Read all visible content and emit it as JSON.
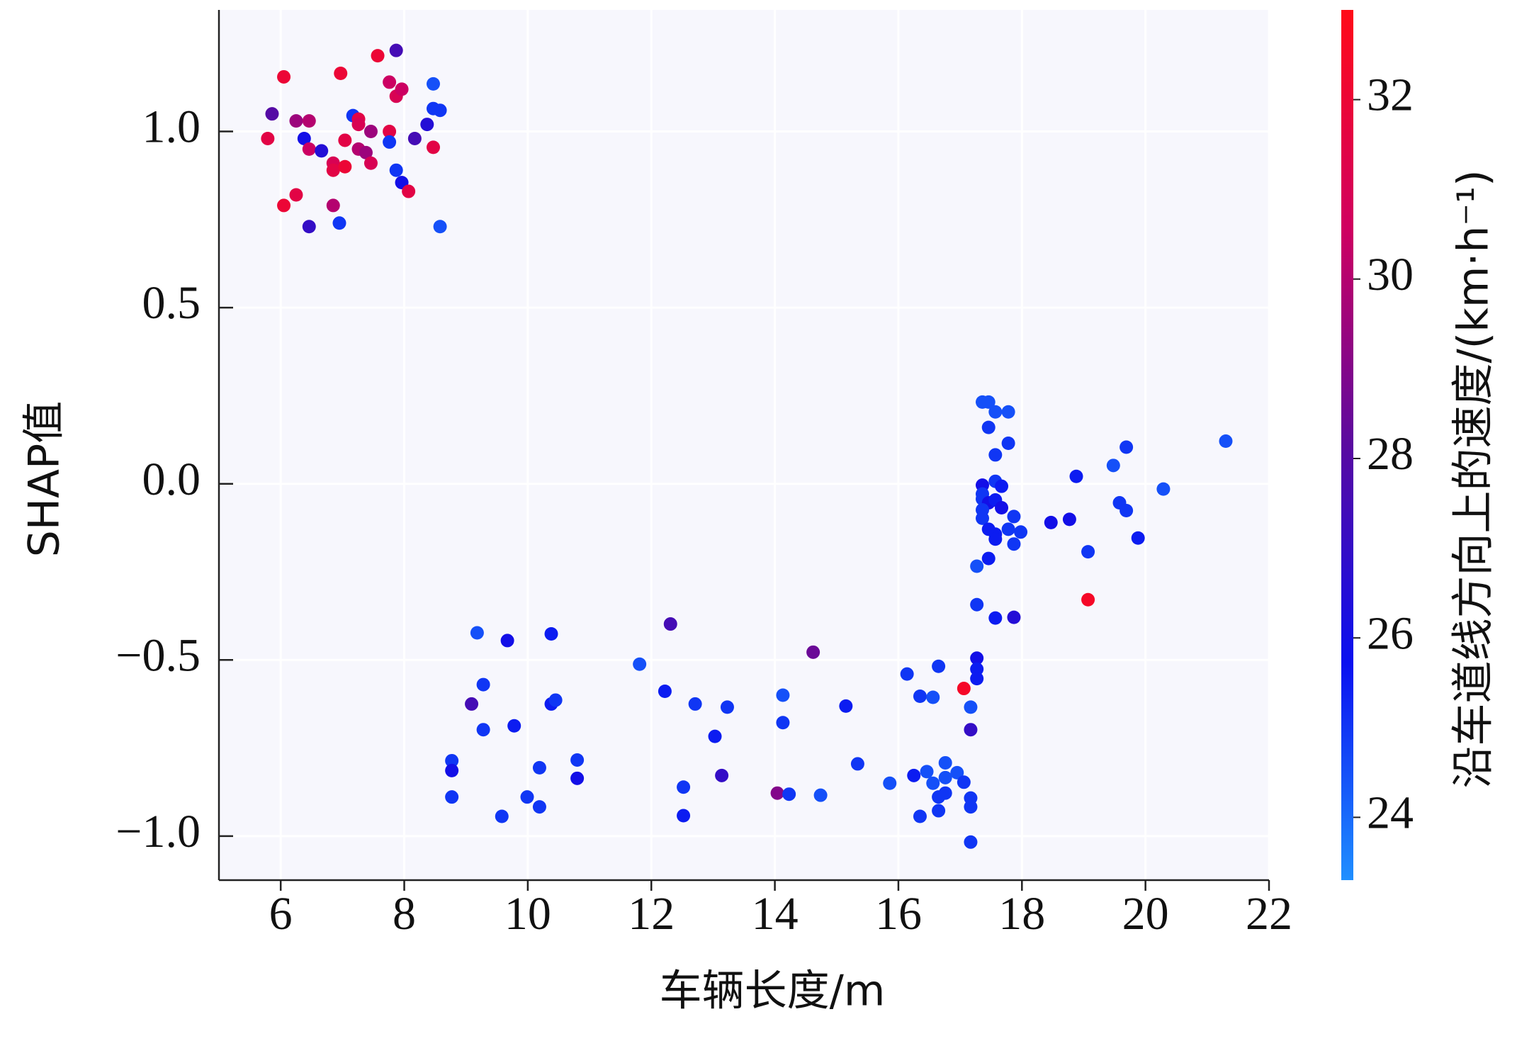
{
  "chart_data": {
    "type": "scatter",
    "x_label": "车辆长度/m",
    "y_label": "SHAP值",
    "colorbar_label": "沿车道线方向上的速度/(km·h⁻¹)",
    "xlim": [
      5.0,
      22.0
    ],
    "xticks": [
      6,
      8,
      10,
      12,
      14,
      16,
      18,
      20,
      22
    ],
    "ylim": [
      -1.125,
      1.345
    ],
    "yticks": [
      {
        "value": -1,
        "label": "−1.0"
      },
      {
        "value": -0.5,
        "label": "−0.5"
      },
      {
        "value": 0,
        "label": "0.0"
      },
      0.5,
      {
        "value": 1,
        "label": "1.0"
      }
    ],
    "clim": [
      23.3,
      33.0
    ],
    "cticks": [
      24,
      26,
      28,
      30,
      32
    ],
    "colormap": [
      "#1f8fff",
      "#0a10f0",
      "#5a0aa0",
      "#d00060",
      "#ff0a18"
    ],
    "grid": true,
    "x": [
      5.79,
      5.86,
      6.05,
      6.05,
      6.25,
      6.25,
      6.38,
      6.46,
      6.46,
      6.46,
      6.66,
      6.85,
      6.85,
      6.85,
      6.95,
      6.97,
      7.04,
      7.04,
      7.17,
      7.26,
      7.26,
      7.26,
      7.38,
      7.46,
      7.46,
      7.57,
      7.76,
      7.76,
      7.76,
      7.87,
      7.87,
      7.87,
      7.96,
      7.96,
      8.07,
      8.17,
      8.37,
      8.47,
      8.47,
      8.47,
      8.58,
      8.58,
      9.18,
      8.77,
      8.77,
      8.77,
      9.09,
      9.28,
      9.28,
      9.67,
      9.78,
      9.58,
      9.99,
      10.19,
      10.19,
      10.38,
      10.38,
      10.45,
      10.8,
      10.8,
      11.81,
      12.31,
      12.22,
      12.52,
      12.52,
      12.71,
      13.03,
      13.14,
      13.23,
      14.04,
      14.13,
      14.13,
      14.23,
      14.62,
      14.74,
      15.15,
      15.34,
      15.86,
      16.14,
      16.25,
      16.35,
      16.35,
      16.46,
      16.56,
      16.56,
      16.65,
      16.65,
      16.65,
      16.76,
      16.76,
      16.76,
      16.95,
      17.06,
      17.06,
      17.17,
      17.17,
      17.17,
      17.17,
      17.17,
      17.27,
      17.27,
      17.27,
      17.27,
      17.27,
      17.36,
      17.46,
      17.57,
      17.78,
      17.46,
      17.78,
      17.57,
      17.36,
      17.36,
      17.57,
      17.67,
      17.36,
      17.46,
      17.57,
      17.67,
      17.36,
      17.36,
      17.46,
      17.57,
      17.57,
      17.78,
      17.87,
      17.87,
      17.98,
      17.46,
      17.57,
      17.87,
      18.47,
      18.77,
      18.88,
      19.07,
      19.07,
      19.48,
      19.58,
      19.69,
      19.69,
      19.88,
      20.29,
      21.3
    ],
    "y": [
      0.98,
      1.05,
      1.155,
      0.79,
      1.03,
      0.82,
      0.98,
      1.03,
      0.95,
      0.73,
      0.945,
      0.91,
      0.89,
      0.79,
      0.74,
      1.165,
      0.975,
      0.9,
      1.045,
      1.035,
      1.02,
      0.95,
      0.94,
      1.0,
      0.91,
      1.215,
      1.14,
      1.0,
      0.97,
      1.23,
      1.1,
      0.89,
      1.12,
      0.855,
      0.83,
      0.98,
      1.02,
      1.135,
      1.065,
      0.955,
      1.06,
      0.73,
      -0.423,
      -0.786,
      -0.814,
      -0.889,
      -0.625,
      -0.57,
      -0.698,
      -0.445,
      -0.687,
      -0.944,
      -0.889,
      -0.806,
      -0.917,
      -0.426,
      -0.625,
      -0.614,
      -0.784,
      -0.836,
      -0.512,
      -0.398,
      -0.589,
      -0.861,
      -0.942,
      -0.625,
      -0.717,
      -0.828,
      -0.634,
      -0.878,
      -0.6,
      -0.678,
      -0.881,
      -0.478,
      -0.884,
      -0.631,
      -0.795,
      -0.85,
      -0.54,
      -0.828,
      -0.603,
      -0.944,
      -0.817,
      -0.606,
      -0.85,
      -0.518,
      -0.889,
      -0.928,
      -0.834,
      -0.878,
      -0.792,
      -0.82,
      -0.581,
      -0.847,
      -0.698,
      -0.634,
      -0.892,
      -0.917,
      -1.017,
      -0.495,
      -0.526,
      -0.553,
      -0.343,
      -0.234,
      0.232,
      0.232,
      0.204,
      0.204,
      0.16,
      0.115,
      0.082,
      -0.004,
      -0.029,
      0.007,
      -0.007,
      -0.043,
      -0.054,
      -0.046,
      -0.068,
      -0.074,
      -0.098,
      -0.129,
      -0.143,
      -0.157,
      -0.129,
      -0.093,
      -0.171,
      -0.137,
      -0.212,
      -0.381,
      -0.379,
      -0.11,
      -0.101,
      0.021,
      -0.193,
      -0.329,
      0.052,
      -0.054,
      -0.076,
      0.104,
      -0.154,
      -0.015,
      0.121
    ],
    "c": [
      31.5,
      28,
      32,
      32,
      29.5,
      31.5,
      26,
      30,
      30.5,
      27,
      26.5,
      31,
      31.5,
      30,
      25,
      32,
      31.5,
      32,
      25,
      31.5,
      31,
      30,
      29.5,
      29.5,
      31,
      32,
      30.5,
      31.5,
      25,
      27.5,
      31,
      25,
      30.5,
      26,
      31.5,
      27.5,
      26.5,
      24.5,
      25,
      31.5,
      25,
      24.5,
      24.5,
      25,
      26,
      25,
      27.5,
      25,
      25,
      26,
      25.5,
      25,
      25,
      25,
      25,
      25.5,
      25.5,
      25,
      25,
      26,
      24.5,
      27.5,
      25.5,
      25,
      25.5,
      25,
      25.5,
      27,
      25,
      29,
      24.5,
      25,
      25,
      28.5,
      24.5,
      25.5,
      25,
      24.5,
      25,
      25.5,
      25,
      25,
      24.5,
      24.5,
      24.5,
      25,
      25,
      25,
      24.5,
      25,
      24.5,
      24.5,
      32.5,
      25,
      27,
      24.5,
      25,
      25,
      25,
      26,
      25.5,
      25.5,
      25,
      24.5,
      24.5,
      24.5,
      24.5,
      24.5,
      25,
      25,
      25,
      26,
      25,
      25,
      25.5,
      25,
      26,
      25.5,
      26,
      25,
      25,
      25.5,
      25.5,
      25.5,
      25,
      25,
      25,
      25,
      25.5,
      25.5,
      26.5,
      26,
      26,
      25.5,
      25,
      32.5,
      24.5,
      25,
      25,
      25,
      25.5,
      24.5,
      24.5
    ]
  }
}
